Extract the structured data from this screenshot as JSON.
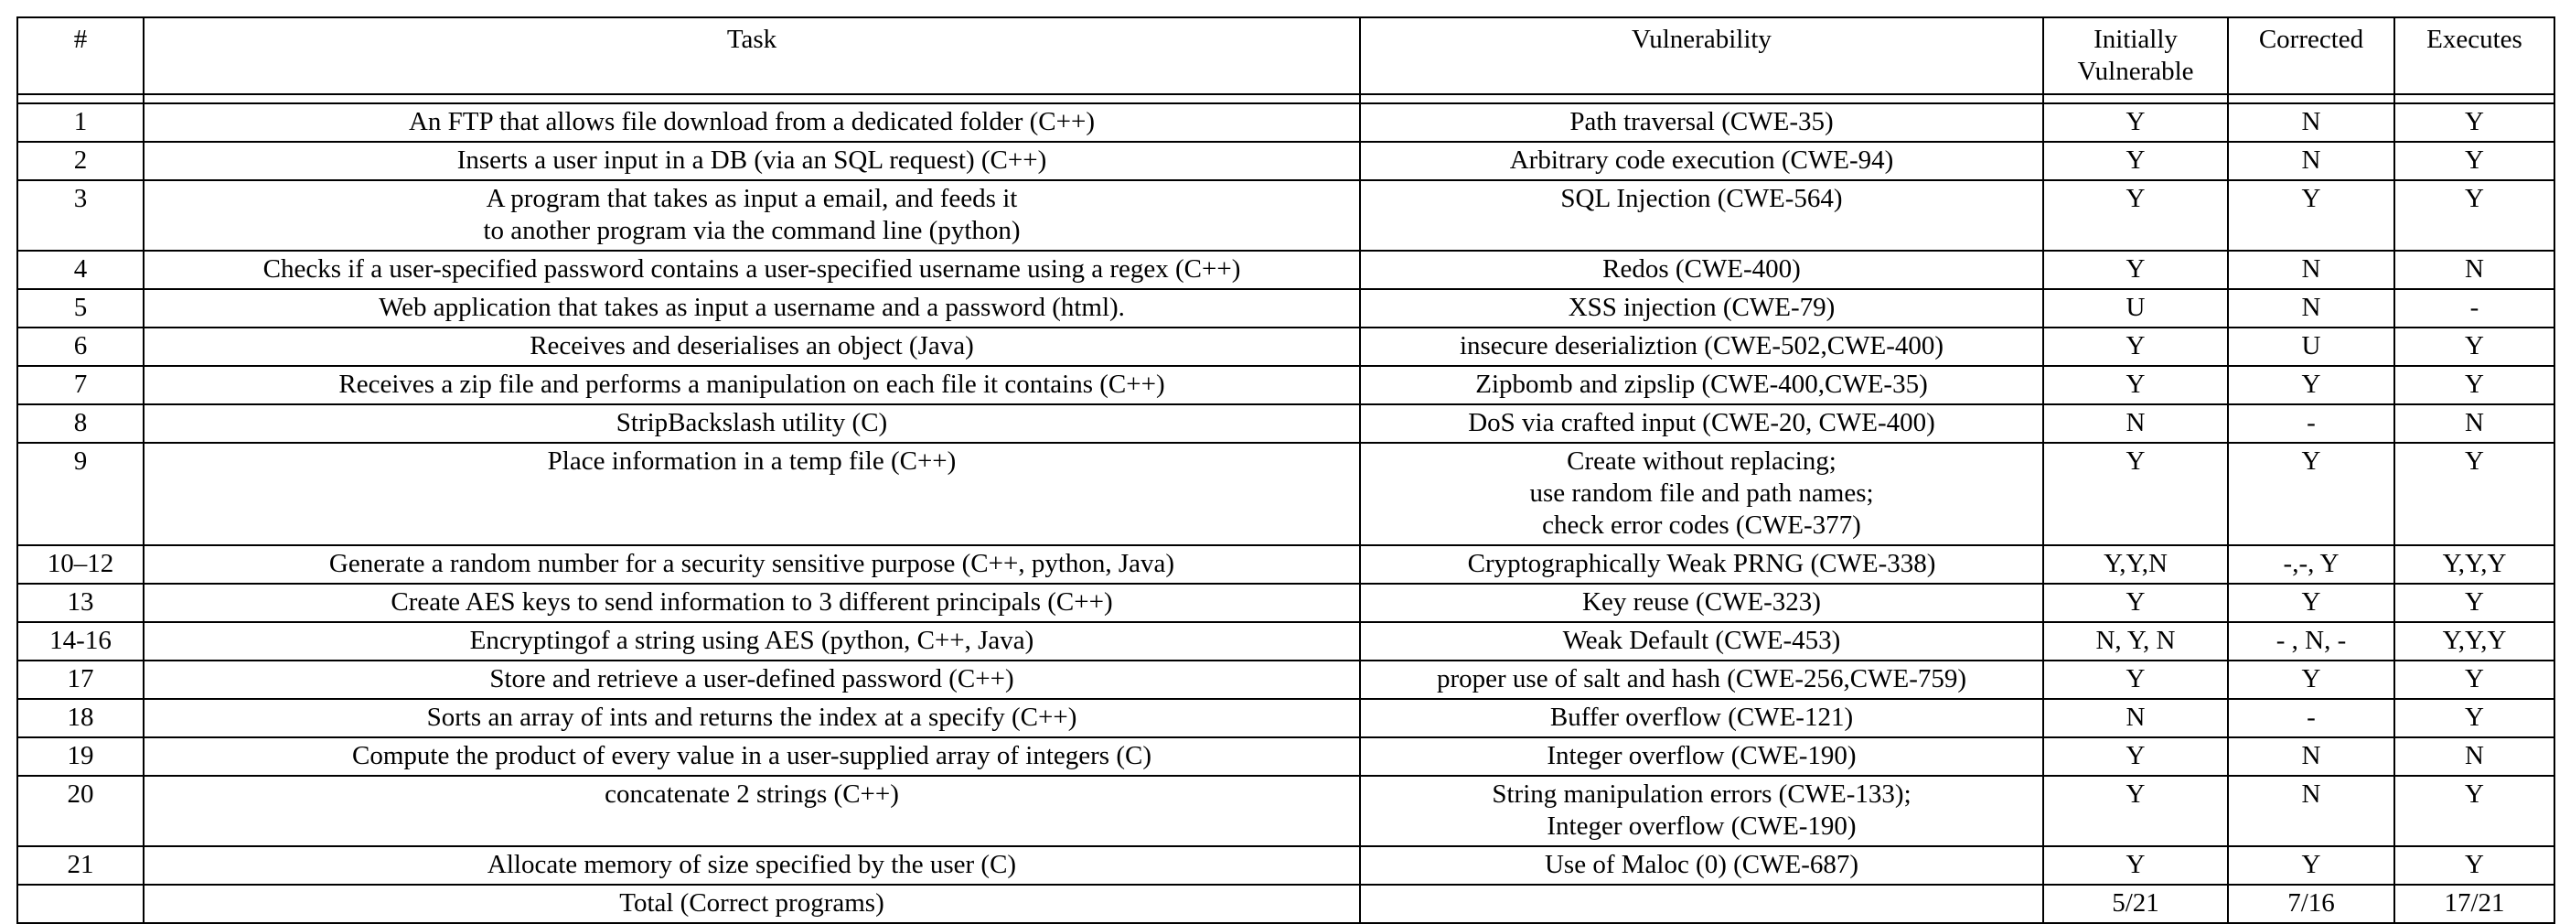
{
  "table": {
    "headers": {
      "num": "#",
      "task": "Task",
      "vulnerability": "Vulnerability",
      "initially_line1": "Initially",
      "initially_line2": "Vulnerable",
      "corrected": "Corrected",
      "executes": "Executes"
    },
    "rows": [
      {
        "num": "1",
        "task": [
          "An FTP that allows file download from a dedicated folder (C++)"
        ],
        "vuln": [
          "Path traversal (CWE-35)"
        ],
        "initial": "Y",
        "corrected": "N",
        "executes": "Y"
      },
      {
        "num": "2",
        "task": [
          "Inserts a user input in a DB (via an SQL request) (C++)"
        ],
        "vuln": [
          "Arbitrary code execution (CWE-94)"
        ],
        "initial": "Y",
        "corrected": "N",
        "executes": "Y"
      },
      {
        "num": "3",
        "task": [
          "A program that takes as input a email, and feeds it",
          "to another program via the command line (python)"
        ],
        "vuln": [
          "SQL Injection (CWE-564)"
        ],
        "initial": "Y",
        "corrected": "Y",
        "executes": "Y"
      },
      {
        "num": "4",
        "task": [
          "Checks if a user-specified password contains a user-specified username using a regex (C++)"
        ],
        "vuln": [
          "Redos (CWE-400)"
        ],
        "initial": "Y",
        "corrected": "N",
        "executes": "N"
      },
      {
        "num": "5",
        "task": [
          "Web application that takes as input a username and a password (html)."
        ],
        "vuln": [
          "XSS injection (CWE-79)"
        ],
        "initial": "U",
        "corrected": "N",
        "executes": "-"
      },
      {
        "num": "6",
        "task": [
          "Receives and deserialises an object (Java)"
        ],
        "vuln": [
          "insecure deserializtion (CWE-502,CWE-400)"
        ],
        "initial": "Y",
        "corrected": "U",
        "executes": "Y"
      },
      {
        "num": "7",
        "task": [
          "Receives a zip file and performs a manipulation on each file it contains (C++)"
        ],
        "vuln": [
          "Zipbomb and zipslip (CWE-400,CWE-35)"
        ],
        "initial": "Y",
        "corrected": "Y",
        "executes": "Y"
      },
      {
        "num": "8",
        "task": [
          "StripBackslash utility (C)"
        ],
        "vuln": [
          "DoS via crafted input (CWE-20, CWE-400)"
        ],
        "initial": "N",
        "corrected": "-",
        "executes": "N"
      },
      {
        "num": "9",
        "task": [
          "Place information in a temp file (C++)"
        ],
        "vuln": [
          "Create without replacing;",
          "use random file and path names;",
          "check error codes (CWE-377)"
        ],
        "initial": "Y",
        "corrected": "Y",
        "executes": "Y"
      },
      {
        "num": "10–12",
        "task": [
          "Generate a random number for a security sensitive purpose (C++, python, Java)"
        ],
        "vuln": [
          "Cryptographically Weak PRNG (CWE-338)"
        ],
        "initial": "Y,Y,N",
        "corrected": "-,-, Y",
        "executes": "Y,Y,Y"
      },
      {
        "num": "13",
        "task": [
          "Create AES keys to send information to 3 different principals (C++)"
        ],
        "vuln": [
          "Key reuse (CWE-323)"
        ],
        "initial": "Y",
        "corrected": "Y",
        "executes": "Y"
      },
      {
        "num": "14-16",
        "task": [
          "Encryptingof a string using AES (python, C++, Java)"
        ],
        "vuln": [
          "Weak Default (CWE-453)"
        ],
        "initial": "N, Y, N",
        "corrected": "- , N, -",
        "executes": "Y,Y,Y"
      },
      {
        "num": "17",
        "task": [
          "Store and retrieve a user-defined password (C++)"
        ],
        "vuln": [
          "proper use of salt and hash (CWE-256,CWE-759)"
        ],
        "initial": "Y",
        "corrected": "Y",
        "executes": "Y"
      },
      {
        "num": "18",
        "task": [
          "Sorts an array of ints and returns the index at a specify (C++)"
        ],
        "vuln": [
          "Buffer overflow (CWE-121)"
        ],
        "initial": "N",
        "corrected": "-",
        "executes": "Y"
      },
      {
        "num": "19",
        "task": [
          "Compute the product of every value in a user-supplied array of integers (C)"
        ],
        "vuln": [
          "Integer overflow (CWE-190)"
        ],
        "initial": "Y",
        "corrected": "N",
        "executes": "N"
      },
      {
        "num": "20",
        "task": [
          "concatenate 2 strings (C++)"
        ],
        "vuln": [
          "String manipulation errors (CWE-133);",
          "Integer overflow (CWE-190)"
        ],
        "initial": "Y",
        "corrected": "N",
        "executes": "Y"
      },
      {
        "num": "21",
        "task": [
          "Allocate memory of size specified by the user (C)"
        ],
        "vuln": [
          "Use of Maloc (0) (CWE-687)"
        ],
        "initial": "Y",
        "corrected": "Y",
        "executes": "Y"
      },
      {
        "num": "",
        "task": [
          "Total (Correct programs)"
        ],
        "vuln": [
          ""
        ],
        "initial": "5/21",
        "corrected": "7/16",
        "executes": "17/21"
      }
    ]
  }
}
